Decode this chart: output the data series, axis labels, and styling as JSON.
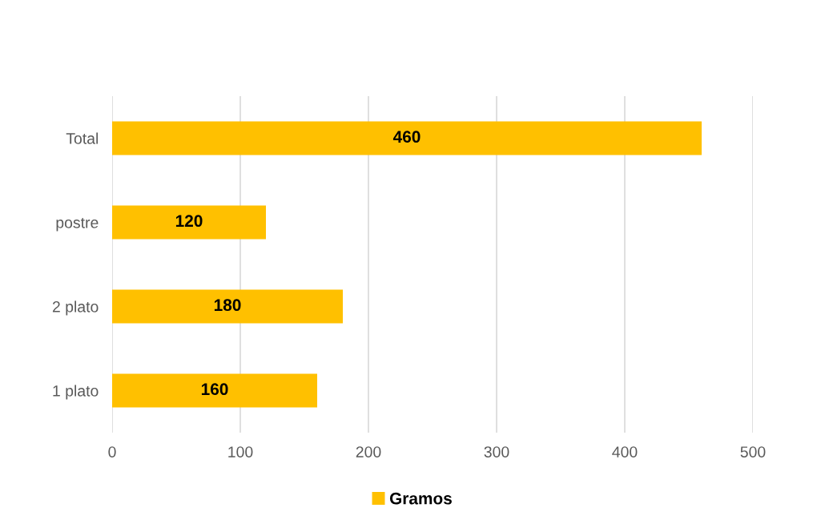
{
  "chart_data": {
    "type": "bar",
    "orientation": "horizontal",
    "categories": [
      "Total",
      "postre",
      "2 plato",
      "1 plato"
    ],
    "series": [
      {
        "name": "Gramos",
        "color": "#ffc000",
        "values": [
          460,
          120,
          180,
          160
        ]
      }
    ],
    "xlim": [
      0,
      500
    ],
    "xticks": [
      0,
      100,
      200,
      300,
      400,
      500
    ],
    "grid": "x",
    "legend": "bottom",
    "data_labels": true
  }
}
